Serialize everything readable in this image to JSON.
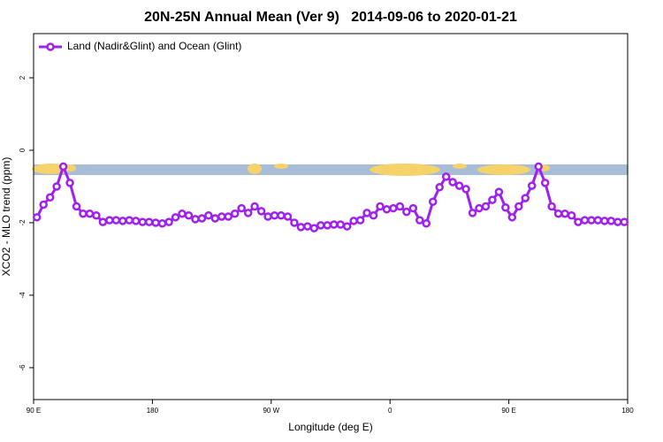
{
  "chart_data": {
    "type": "line",
    "title": "20N-25N Annual Mean (Ver 9)   2014-09-06 to 2020-01-21",
    "x_label": "Longitude (deg E)",
    "y_label": "XCO2 - MLO trend (ppm)",
    "x": [
      92.5,
      97.5,
      102.5,
      107.5,
      112.5,
      117.5,
      122.5,
      127.5,
      132.5,
      137.5,
      142.5,
      147.5,
      152.5,
      157.5,
      162.5,
      167.5,
      172.5,
      177.5,
      182.5,
      187.5,
      192.5,
      197.5,
      202.5,
      207.5,
      212.5,
      217.5,
      222.5,
      227.5,
      232.5,
      237.5,
      242.5,
      247.5,
      252.5,
      257.5,
      262.5,
      267.5,
      272.5,
      277.5,
      282.5,
      287.5,
      292.5,
      297.5,
      302.5,
      307.5,
      312.5,
      317.5,
      322.5,
      327.5,
      332.5,
      337.5,
      342.5,
      347.5,
      352.5,
      357.5,
      362.5,
      367.5,
      372.5,
      377.5,
      382.5,
      387.5,
      392.5,
      397.5,
      402.5,
      407.5,
      412.5,
      417.5,
      422.5,
      427.5,
      432.5,
      437.5,
      442.5,
      447.5,
      452.5,
      457.5,
      462.5,
      467.5,
      472.5,
      477.5,
      482.5,
      487.5,
      492.5,
      497.5,
      502.5,
      507.5,
      512.5,
      517.5,
      522.5,
      527.5,
      532.5,
      537.5
    ],
    "series": [
      {
        "name": "Land (Nadir&Glint) and Ocean (Glint)",
        "color": "#a020f0",
        "values": [
          -1.85,
          -1.5,
          -1.3,
          -1.0,
          -0.45,
          -0.9,
          -1.55,
          -1.75,
          -1.75,
          -1.8,
          -1.98,
          -1.93,
          -1.93,
          -1.95,
          -1.93,
          -1.95,
          -1.98,
          -1.98,
          -2.0,
          -2.02,
          -1.98,
          -1.85,
          -1.75,
          -1.8,
          -1.9,
          -1.88,
          -1.8,
          -1.88,
          -1.83,
          -1.83,
          -1.75,
          -1.6,
          -1.73,
          -1.55,
          -1.68,
          -1.83,
          -1.8,
          -1.8,
          -1.83,
          -2.0,
          -2.12,
          -2.1,
          -2.15,
          -2.07,
          -2.07,
          -2.05,
          -2.05,
          -2.1,
          -1.95,
          -1.93,
          -1.73,
          -1.8,
          -1.55,
          -1.63,
          -1.6,
          -1.55,
          -1.7,
          -1.6,
          -1.93,
          -2.02,
          -1.42,
          -1.02,
          -0.73,
          -0.88,
          -0.98,
          -1.07,
          -1.73,
          -1.6,
          -1.55,
          -1.37,
          -1.15,
          -1.58,
          -1.85,
          -1.55,
          -1.32,
          -0.98,
          -0.45,
          -0.9,
          -1.55,
          -1.75,
          -1.75,
          -1.8,
          -1.98,
          -1.93,
          -1.93,
          -1.93,
          -1.95,
          -1.95,
          -1.98,
          -1.98
        ]
      }
    ],
    "xlim": [
      90,
      540
    ],
    "xticks": [
      {
        "value": 90,
        "label": "90 E"
      },
      180,
      {
        "value": 270,
        "label": "90 W"
      },
      {
        "value": 360,
        "label": "0"
      },
      {
        "value": 450,
        "label": "90 E"
      },
      {
        "value": 540,
        "label": "180"
      }
    ],
    "ylim": [
      -6.88,
      3.22
    ],
    "yticks": [
      2,
      0,
      -2,
      -4,
      -6
    ],
    "legend": "top-left"
  }
}
